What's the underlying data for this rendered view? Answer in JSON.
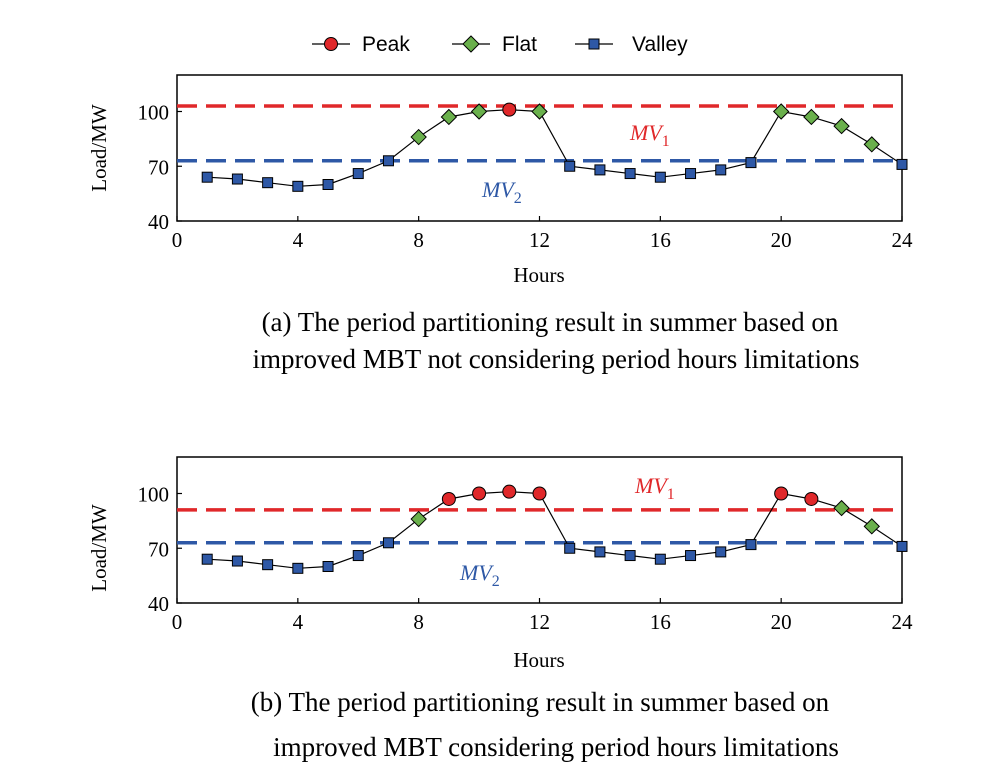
{
  "legend": {
    "entries": [
      {
        "label": "Peak",
        "marker": "circle",
        "color": "#e0282a"
      },
      {
        "label": "Flat",
        "marker": "diamond",
        "color": "#6ab04c"
      },
      {
        "label": "Valley",
        "marker": "square",
        "color": "#2e58a6"
      }
    ]
  },
  "chart_data": [
    {
      "type": "line",
      "title": "",
      "caption_line1": "(a) The period partitioning result in summer based on",
      "caption_line2": "improved MBT  not considering period hours limitations",
      "xlabel": "Hours",
      "ylabel": "Load/MW",
      "xlim": [
        0,
        24
      ],
      "ylim": [
        40,
        120
      ],
      "xticks": [
        0,
        4,
        8,
        12,
        16,
        20,
        24
      ],
      "yticks": [
        40,
        70,
        100
      ],
      "x": [
        1,
        2,
        3,
        4,
        5,
        6,
        7,
        8,
        9,
        10,
        11,
        12,
        13,
        14,
        15,
        16,
        17,
        18,
        19,
        20,
        21,
        22,
        23,
        24
      ],
      "values": [
        64,
        63,
        61,
        59,
        60,
        66,
        73,
        86,
        97,
        100,
        101,
        100,
        70,
        68,
        66,
        64,
        66,
        68,
        72,
        100,
        97,
        92,
        82,
        71
      ],
      "classes": [
        "valley",
        "valley",
        "valley",
        "valley",
        "valley",
        "valley",
        "valley",
        "flat",
        "flat",
        "flat",
        "peak",
        "flat",
        "valley",
        "valley",
        "valley",
        "valley",
        "valley",
        "valley",
        "valley",
        "flat",
        "flat",
        "flat",
        "flat",
        "valley"
      ],
      "thresholds": [
        {
          "name": "MV",
          "sub": "1",
          "value": 103,
          "color": "#e0282a"
        },
        {
          "name": "MV",
          "sub": "2",
          "value": 73,
          "color": "#2e58a6"
        }
      ]
    },
    {
      "type": "line",
      "title": "",
      "caption_line1": "(b) The period partitioning result in summer based on",
      "caption_line2": "improved MBT considering period hours limitations",
      "xlabel": "Hours",
      "ylabel": "Load/MW",
      "xlim": [
        0,
        24
      ],
      "ylim": [
        40,
        120
      ],
      "xticks": [
        0,
        4,
        8,
        12,
        16,
        20,
        24
      ],
      "yticks": [
        40,
        70,
        100
      ],
      "x": [
        1,
        2,
        3,
        4,
        5,
        6,
        7,
        8,
        9,
        10,
        11,
        12,
        13,
        14,
        15,
        16,
        17,
        18,
        19,
        20,
        21,
        22,
        23,
        24
      ],
      "values": [
        64,
        63,
        61,
        59,
        60,
        66,
        73,
        86,
        97,
        100,
        101,
        100,
        70,
        68,
        66,
        64,
        66,
        68,
        72,
        100,
        97,
        92,
        82,
        71
      ],
      "classes": [
        "valley",
        "valley",
        "valley",
        "valley",
        "valley",
        "valley",
        "valley",
        "flat",
        "peak",
        "peak",
        "peak",
        "peak",
        "valley",
        "valley",
        "valley",
        "valley",
        "valley",
        "valley",
        "valley",
        "peak",
        "peak",
        "flat",
        "flat",
        "valley"
      ],
      "thresholds": [
        {
          "name": "MV",
          "sub": "1",
          "value": 91,
          "color": "#e0282a"
        },
        {
          "name": "MV",
          "sub": "2",
          "value": 73,
          "color": "#2e58a6"
        }
      ]
    }
  ]
}
